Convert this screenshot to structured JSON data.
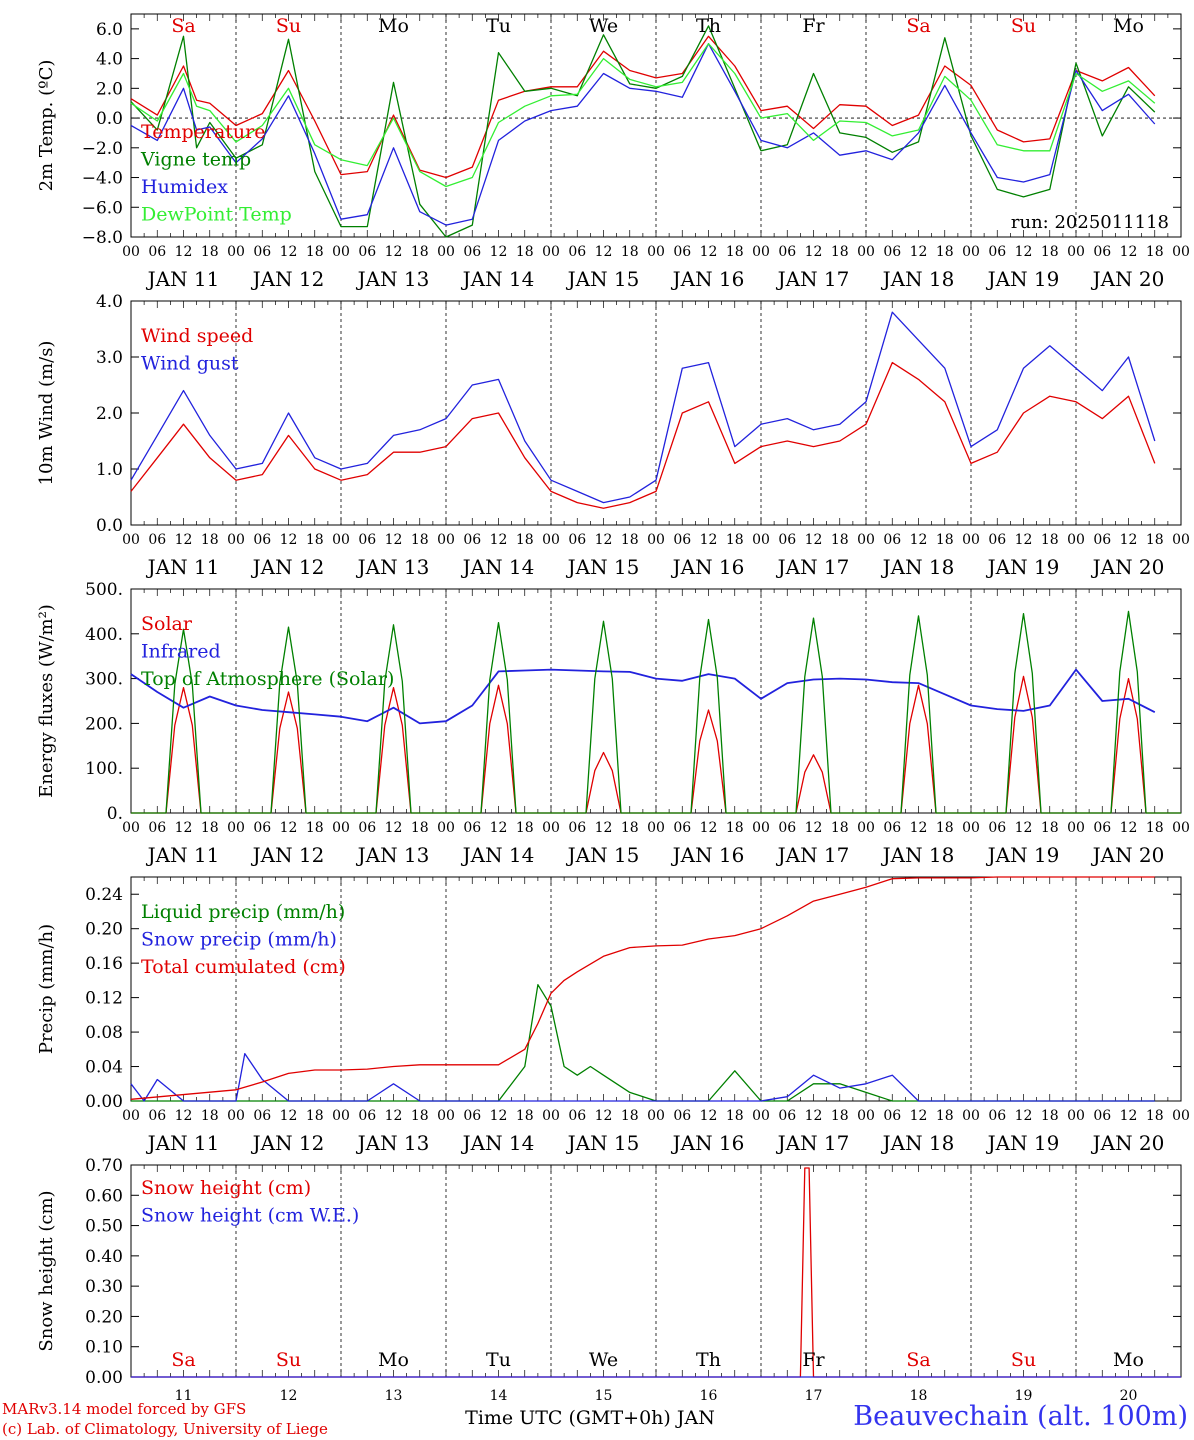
{
  "weekdays_top": [
    "Sa",
    "Su",
    "Mo",
    "Tu",
    "We",
    "Th",
    "Fr",
    "Sa",
    "Su",
    "Mo"
  ],
  "weekend_color": "#e00000",
  "hour_ticks": [
    "00",
    "06",
    "12",
    "18"
  ],
  "end_tick": "00",
  "date_labels": [
    "JAN 11",
    "JAN 12",
    "JAN 13",
    "JAN 14",
    "JAN 15",
    "JAN 16",
    "JAN 17",
    "JAN 18",
    "JAN 19",
    "JAN 20"
  ],
  "day_numbers": [
    "11",
    "12",
    "13",
    "14",
    "15",
    "16",
    "17",
    "18",
    "19",
    "20"
  ],
  "xaxis_title": "Time UTC (GMT+0h) JAN",
  "credit_line1": "MARv3.14 model forced by GFS",
  "credit_line2": "(c) Lab. of Climatology, University of Liege",
  "station": "Beauvechain (alt. 100m)",
  "run_label": "run: 2025011118",
  "chart_data": [
    {
      "type": "line",
      "ylabel": "2m Temp. (ºC)",
      "ylim": [
        -8,
        7
      ],
      "ytick_labels": [
        "6.0",
        "4.0",
        "2.0",
        "0.0",
        "−2.0",
        "−4.0",
        "−6.0",
        "−8.0"
      ],
      "zero_line": true,
      "x_unit": "hours since JAN 11 00 UTC",
      "series": [
        {
          "name": "Temperature",
          "color": "#e00000",
          "x": [
            0,
            6,
            12,
            15,
            18,
            24,
            30,
            36,
            42,
            48,
            54,
            60,
            66,
            72,
            78,
            84,
            90,
            96,
            102,
            108,
            114,
            120,
            126,
            132,
            138,
            144,
            150,
            156,
            162,
            168,
            174,
            180,
            186,
            192,
            198,
            204,
            210,
            216,
            222,
            228,
            234
          ],
          "values": [
            1.3,
            0.2,
            3.5,
            1.2,
            1.0,
            -0.5,
            0.3,
            3.2,
            -0.2,
            -3.8,
            -3.6,
            0.2,
            -3.5,
            -4.0,
            -3.3,
            1.2,
            1.8,
            2.1,
            2.1,
            4.5,
            3.2,
            2.7,
            3.0,
            5.5,
            3.5,
            0.5,
            0.8,
            -0.7,
            0.9,
            0.8,
            -0.5,
            0.2,
            3.5,
            2.2,
            -0.8,
            -1.6,
            -1.4,
            3.2,
            2.5,
            3.4,
            1.5
          ]
        },
        {
          "name": "Vigne temp",
          "color": "#008000",
          "x": [
            0,
            6,
            12,
            15,
            18,
            24,
            30,
            36,
            42,
            48,
            54,
            60,
            66,
            72,
            78,
            84,
            90,
            96,
            102,
            108,
            114,
            120,
            126,
            132,
            138,
            144,
            150,
            156,
            162,
            168,
            174,
            180,
            186,
            192,
            198,
            204,
            210,
            216,
            222,
            228,
            234
          ],
          "values": [
            1.1,
            -0.8,
            5.5,
            -2.0,
            -0.3,
            -2.7,
            -1.8,
            5.3,
            -3.6,
            -7.3,
            -7.3,
            2.4,
            -5.8,
            -8.0,
            -7.2,
            4.4,
            1.8,
            2.0,
            1.5,
            5.6,
            2.3,
            2.0,
            2.8,
            6.2,
            2.0,
            -2.2,
            -1.8,
            3.0,
            -1.0,
            -1.3,
            -2.3,
            -1.6,
            5.4,
            -1.2,
            -4.8,
            -5.3,
            -4.8,
            3.7,
            -1.2,
            2.1,
            0.4
          ]
        },
        {
          "name": "Humidex",
          "color": "#2222dd",
          "x": [
            0,
            6,
            12,
            15,
            18,
            24,
            30,
            36,
            42,
            48,
            54,
            60,
            66,
            72,
            78,
            84,
            90,
            96,
            102,
            108,
            114,
            120,
            126,
            132,
            138,
            144,
            150,
            156,
            162,
            168,
            174,
            180,
            186,
            192,
            198,
            204,
            210,
            216,
            222,
            228,
            234
          ],
          "values": [
            -0.5,
            -1.5,
            2.0,
            -0.8,
            -0.6,
            -3.0,
            -1.4,
            1.5,
            -2.4,
            -6.8,
            -6.5,
            -2.0,
            -6.3,
            -7.2,
            -6.8,
            -1.5,
            -0.2,
            0.5,
            0.8,
            3.0,
            2.0,
            1.8,
            1.4,
            5.0,
            1.8,
            -1.5,
            -2.0,
            -1.0,
            -2.5,
            -2.2,
            -2.8,
            -1.0,
            2.2,
            -1.0,
            -4.0,
            -4.3,
            -3.8,
            3.2,
            0.5,
            1.6,
            -0.4
          ]
        },
        {
          "name": "DewPoint Temp",
          "color": "#33ee33",
          "x": [
            0,
            6,
            12,
            15,
            18,
            24,
            30,
            36,
            42,
            48,
            54,
            60,
            66,
            72,
            78,
            84,
            90,
            96,
            102,
            108,
            114,
            120,
            126,
            132,
            138,
            144,
            150,
            156,
            162,
            168,
            174,
            180,
            186,
            192,
            198,
            204,
            210,
            216,
            222,
            228,
            234
          ],
          "values": [
            1.0,
            -0.2,
            3.0,
            0.8,
            0.5,
            -1.6,
            -0.5,
            2.0,
            -1.8,
            -2.8,
            -3.2,
            0.0,
            -3.6,
            -4.6,
            -4.0,
            -0.3,
            0.8,
            1.5,
            1.6,
            4.0,
            2.6,
            2.1,
            2.4,
            5.0,
            3.0,
            0.0,
            0.3,
            -1.5,
            -0.2,
            -0.3,
            -1.2,
            -0.8,
            2.8,
            1.2,
            -1.8,
            -2.2,
            -2.2,
            3.0,
            1.8,
            2.5,
            1.0
          ]
        }
      ]
    },
    {
      "type": "line",
      "ylabel": "10m Wind (m/s)",
      "ylim": [
        0,
        4
      ],
      "ytick_labels": [
        "4.0",
        "3.0",
        "2.0",
        "1.0",
        "0.0"
      ],
      "series": [
        {
          "name": "Wind speed",
          "color": "#e00000",
          "x": [
            0,
            6,
            12,
            18,
            24,
            30,
            36,
            42,
            48,
            54,
            60,
            66,
            72,
            78,
            84,
            90,
            96,
            102,
            108,
            114,
            120,
            126,
            132,
            138,
            144,
            150,
            156,
            162,
            168,
            174,
            180,
            186,
            192,
            198,
            204,
            210,
            216,
            222,
            228,
            234
          ],
          "values": [
            0.6,
            1.2,
            1.8,
            1.2,
            0.8,
            0.9,
            1.6,
            1.0,
            0.8,
            0.9,
            1.3,
            1.3,
            1.4,
            1.9,
            2.0,
            1.2,
            0.6,
            0.4,
            0.3,
            0.4,
            0.6,
            2.0,
            2.2,
            1.1,
            1.4,
            1.5,
            1.4,
            1.5,
            1.8,
            2.9,
            2.6,
            2.2,
            1.1,
            1.3,
            2.0,
            2.3,
            2.2,
            1.9,
            2.3,
            1.1
          ]
        },
        {
          "name": "Wind gust",
          "color": "#2222dd",
          "x": [
            0,
            6,
            12,
            18,
            24,
            30,
            36,
            42,
            48,
            54,
            60,
            66,
            72,
            78,
            84,
            90,
            96,
            102,
            108,
            114,
            120,
            126,
            132,
            138,
            144,
            150,
            156,
            162,
            168,
            174,
            180,
            186,
            192,
            198,
            204,
            210,
            216,
            222,
            228,
            234
          ],
          "values": [
            0.8,
            1.6,
            2.4,
            1.6,
            1.0,
            1.1,
            2.0,
            1.2,
            1.0,
            1.1,
            1.6,
            1.7,
            1.9,
            2.5,
            2.6,
            1.5,
            0.8,
            0.6,
            0.4,
            0.5,
            0.8,
            2.8,
            2.9,
            1.4,
            1.8,
            1.9,
            1.7,
            1.8,
            2.2,
            3.8,
            3.3,
            2.8,
            1.4,
            1.7,
            2.8,
            3.2,
            2.8,
            2.4,
            3.0,
            1.5
          ]
        }
      ]
    },
    {
      "type": "line",
      "ylabel": "Energy fluxes (W/m²)",
      "ylim": [
        0,
        500
      ],
      "ytick_labels": [
        "500.",
        "400.",
        "300.",
        "200.",
        "100.",
        "0."
      ],
      "series": [
        {
          "name": "Solar",
          "color": "#e00000",
          "peaks": [
            280,
            270,
            280,
            285,
            135,
            230,
            130,
            285,
            305,
            300
          ]
        },
        {
          "name": "Infrared",
          "color": "#2222dd",
          "x": [
            0,
            6,
            12,
            18,
            24,
            30,
            36,
            42,
            48,
            54,
            60,
            66,
            72,
            78,
            84,
            90,
            96,
            102,
            108,
            114,
            120,
            126,
            132,
            138,
            144,
            150,
            156,
            162,
            168,
            174,
            180,
            186,
            192,
            198,
            204,
            210,
            216,
            222,
            228,
            234
          ],
          "values": [
            310,
            270,
            235,
            260,
            240,
            230,
            225,
            220,
            215,
            205,
            235,
            200,
            205,
            240,
            316,
            318,
            320,
            318,
            316,
            315,
            300,
            295,
            310,
            300,
            255,
            290,
            298,
            300,
            298,
            292,
            290,
            265,
            240,
            232,
            228,
            240,
            320,
            250,
            255,
            225
          ]
        },
        {
          "name": "Top of Atmosphere (Solar)",
          "color": "#008000",
          "peaks": [
            410,
            415,
            420,
            425,
            428,
            432,
            435,
            440,
            445,
            450
          ]
        }
      ]
    },
    {
      "type": "line",
      "ylabel": "Precip (mm/h)",
      "ylim": [
        0,
        0.26
      ],
      "ytick_labels": [
        "0.24",
        "0.20",
        "0.16",
        "0.12",
        "0.08",
        "0.04",
        "0.00"
      ],
      "series": [
        {
          "name": "Liquid precip (mm/h)",
          "color": "#008000",
          "x": [
            0,
            6,
            12,
            18,
            24,
            30,
            36,
            42,
            48,
            54,
            60,
            66,
            72,
            78,
            84,
            90,
            93,
            96,
            99,
            102,
            105,
            108,
            114,
            120,
            126,
            132,
            138,
            144,
            150,
            156,
            162,
            168,
            174,
            180,
            186,
            192,
            198,
            204,
            210,
            216,
            222,
            228,
            234
          ],
          "values": [
            0,
            0,
            0,
            0,
            0,
            0,
            0,
            0,
            0,
            0,
            0,
            0,
            0,
            0,
            0,
            0.04,
            0.135,
            0.11,
            0.04,
            0.03,
            0.04,
            0.03,
            0.01,
            0,
            0,
            0,
            0.035,
            0,
            0,
            0.02,
            0.02,
            0.01,
            0,
            0,
            0,
            0,
            0,
            0,
            0,
            0,
            0,
            0,
            0
          ]
        },
        {
          "name": "Snow precip (mm/h)",
          "color": "#2222dd",
          "x": [
            0,
            3,
            6,
            12,
            18,
            24,
            26,
            30,
            36,
            42,
            48,
            54,
            60,
            66,
            72,
            78,
            84,
            90,
            96,
            102,
            108,
            114,
            120,
            126,
            132,
            138,
            144,
            150,
            156,
            162,
            168,
            174,
            180,
            186,
            192,
            198,
            204,
            210,
            216,
            222,
            228,
            234
          ],
          "values": [
            0.02,
            0.0,
            0.025,
            0.0,
            0.0,
            0.0,
            0.055,
            0.025,
            0.0,
            0.0,
            0.0,
            0.0,
            0.02,
            0.0,
            0.0,
            0.0,
            0.0,
            0.0,
            0.0,
            0.0,
            0.0,
            0.0,
            0.0,
            0.0,
            0.0,
            0.0,
            0.0,
            0.005,
            0.03,
            0.015,
            0.02,
            0.03,
            0.0,
            0.0,
            0.0,
            0.0,
            0.0,
            0.0,
            0.0,
            0.0,
            0.0,
            0.0
          ]
        },
        {
          "name": "Total cumulated (cm)",
          "color": "#e00000",
          "x": [
            0,
            24,
            30,
            36,
            42,
            48,
            54,
            60,
            66,
            72,
            78,
            84,
            90,
            93,
            96,
            99,
            102,
            108,
            114,
            120,
            126,
            132,
            138,
            144,
            150,
            156,
            162,
            168,
            174,
            180,
            186,
            192,
            198,
            204,
            210,
            216,
            222,
            228,
            234
          ],
          "values": [
            0.002,
            0.013,
            0.022,
            0.032,
            0.036,
            0.036,
            0.037,
            0.04,
            0.042,
            0.042,
            0.042,
            0.042,
            0.06,
            0.09,
            0.125,
            0.14,
            0.15,
            0.168,
            0.178,
            0.18,
            0.181,
            0.188,
            0.192,
            0.2,
            0.215,
            0.232,
            0.24,
            0.248,
            0.258,
            0.259,
            0.259,
            0.259,
            0.26,
            0.26,
            0.26,
            0.26,
            0.26,
            0.26,
            0.26
          ]
        }
      ]
    },
    {
      "type": "line",
      "ylabel": "Snow height (cm)",
      "ylim": [
        0,
        0.7
      ],
      "ytick_labels": [
        "0.70",
        "0.60",
        "0.50",
        "0.40",
        "0.30",
        "0.20",
        "0.10",
        "0.00"
      ],
      "series": [
        {
          "name": "Snow height (cm)",
          "color": "#e00000",
          "x": [
            0,
            153,
            154,
            155,
            156,
            240
          ],
          "values": [
            0,
            0,
            0.69,
            0.69,
            0,
            0
          ]
        },
        {
          "name": "Snow height (cm W.E.)",
          "color": "#2222dd",
          "x": [
            0,
            240
          ],
          "values": [
            0,
            0
          ]
        }
      ]
    }
  ]
}
